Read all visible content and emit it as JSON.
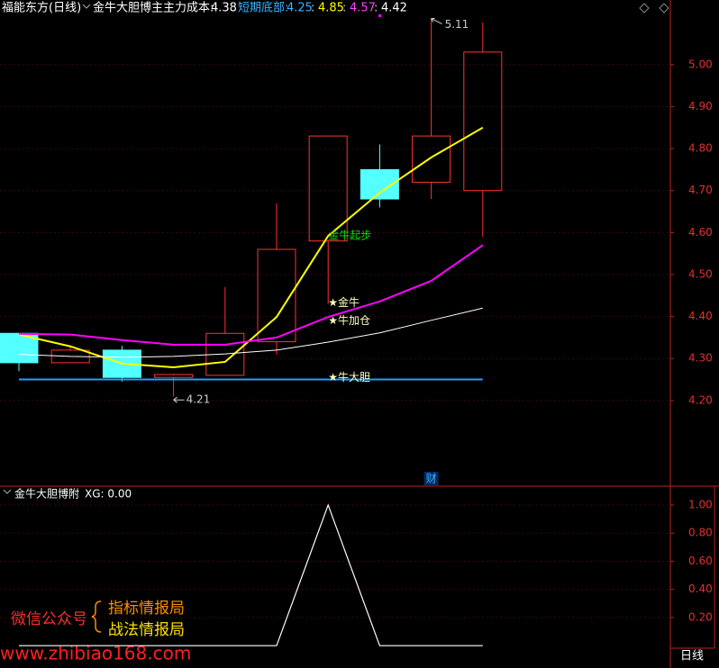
{
  "header": {
    "stock": "福能东方(日线)",
    "indicator": "金牛大胆博主",
    "cost_label": "主力成本:",
    "cost": 4.38,
    "bottom_label": "短期底部:",
    "separator": ":",
    "values": [
      4.25,
      4.85,
      4.57,
      4.42
    ],
    "value_colors": [
      "#3cb4ff",
      "#ffff00",
      "#ff40ff",
      "#ffffff"
    ]
  },
  "chart_data": [
    {
      "type": "candlestick",
      "categories": [
        null,
        null,
        null,
        null,
        null,
        null,
        null,
        null,
        null,
        null
      ],
      "open": [
        4.36,
        4.29,
        4.32,
        4.255,
        4.26,
        4.34,
        4.58,
        4.75,
        4.72,
        4.7
      ],
      "high": [
        4.36,
        4.33,
        4.33,
        4.26,
        4.47,
        4.67,
        4.83,
        4.81,
        5.11,
        5.1
      ],
      "low": [
        4.27,
        4.29,
        4.245,
        4.21,
        4.26,
        4.31,
        4.43,
        4.66,
        4.68,
        4.59
      ],
      "close": [
        4.29,
        4.32,
        4.255,
        4.262,
        4.36,
        4.56,
        4.83,
        4.68,
        4.83,
        5.03
      ],
      "up_color": "#ff3232",
      "down_color": "#54ffff",
      "lines": [
        {
          "color": "#ffff00",
          "values": [
            4.357,
            4.329,
            4.288,
            4.279,
            4.292,
            4.399,
            4.592,
            4.695,
            4.779,
            4.85
          ]
        },
        {
          "color": "#ff00ff",
          "values": [
            4.359,
            4.357,
            4.344,
            4.333,
            4.333,
            4.35,
            4.399,
            4.436,
            4.485,
            4.57
          ]
        },
        {
          "color": "#ffffff",
          "values": [
            4.31,
            4.305,
            4.303,
            4.305,
            4.311,
            4.32,
            4.339,
            4.361,
            4.391,
            4.42
          ]
        }
      ],
      "hline": {
        "value": 4.25,
        "color": "#1ea0ff"
      },
      "annotations": [
        {
          "text": "金牛起步",
          "index": 6,
          "value": 4.592,
          "color": "#00e000"
        },
        {
          "text": "★金牛",
          "index": 6,
          "value": 4.432,
          "color": "#ffffc0"
        },
        {
          "text": "★牛加仓",
          "index": 6,
          "value": 4.389,
          "color": "#ffffc0"
        },
        {
          "text": "★牛大胆",
          "index": 6,
          "value": 4.254,
          "color": "#ffffc0"
        }
      ],
      "extreme_labels": {
        "high": 8,
        "low": 3
      },
      "marker": {
        "text": "财",
        "index": 8
      },
      "ylim": [
        3.996,
        5.154
      ],
      "yticks": [
        {
          "value": 4.2,
          "label": "4.20"
        },
        {
          "value": 4.3,
          "label": "4.30"
        },
        {
          "value": 4.4,
          "label": "4.40"
        },
        {
          "value": 4.5,
          "label": "4.50"
        },
        {
          "value": 4.6,
          "label": "4.60"
        },
        {
          "value": 4.7,
          "label": "4.70"
        },
        {
          "value": 4.8,
          "label": "4.80"
        },
        {
          "value": 4.9,
          "label": "4.90"
        },
        {
          "value": 5.0,
          "label": "5.00"
        }
      ],
      "grid": true
    },
    {
      "type": "line",
      "title": "金牛大胆博附",
      "subtitle": "XG: 0.00",
      "series": [
        {
          "color": "#ffffff",
          "values": [
            0,
            0,
            0,
            0,
            0,
            0,
            1,
            0,
            0,
            0
          ]
        }
      ],
      "ylim": [
        -0.018,
        1.134
      ],
      "yticks": [
        {
          "value": 0.2,
          "label": "0.20"
        },
        {
          "value": 0.4,
          "label": "0.40"
        },
        {
          "value": 0.6,
          "label": "0.60"
        },
        {
          "value": 0.8,
          "label": "0.80"
        },
        {
          "value": 1.0,
          "label": "1.00"
        }
      ],
      "grid": true
    }
  ],
  "watermark": {
    "account": "微信公众号",
    "name1": "指标情报局",
    "name2": "战法情报局",
    "site": "www.zhibiao168.com"
  },
  "footer": {
    "period": "日线"
  }
}
